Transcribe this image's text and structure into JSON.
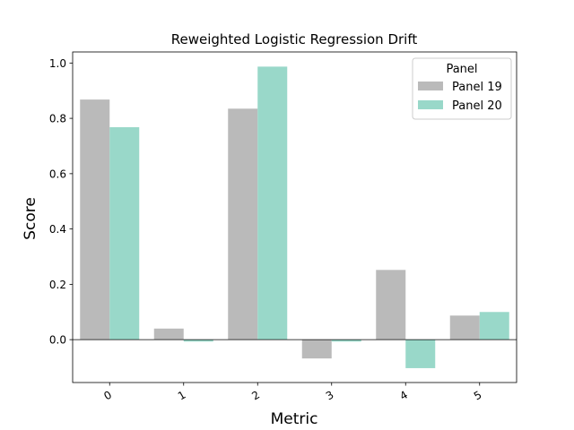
{
  "chart_data": {
    "type": "bar",
    "title": "Reweighted Logistic Regression Drift",
    "xlabel": "Metric",
    "ylabel": "Score",
    "categories": [
      "0",
      "1",
      "2",
      "3",
      "4",
      "5"
    ],
    "series": [
      {
        "name": "Panel 19",
        "color": "#bababa",
        "values": [
          0.868,
          0.04,
          0.835,
          -0.068,
          0.252,
          0.087
        ]
      },
      {
        "name": "Panel 20",
        "color": "#99d8c9",
        "values": [
          0.768,
          -0.007,
          0.987,
          -0.007,
          -0.103,
          0.1
        ]
      }
    ],
    "ylim": [
      -0.155,
      1.04
    ],
    "yticks": [
      0.0,
      0.2,
      0.4,
      0.6,
      0.8,
      1.0
    ],
    "ytick_labels": [
      "0.0",
      "0.2",
      "0.4",
      "0.6",
      "0.8",
      "1.0"
    ],
    "legend": {
      "title": "Panel",
      "placement": "top-right"
    },
    "grid": false,
    "zero_line": true
  }
}
